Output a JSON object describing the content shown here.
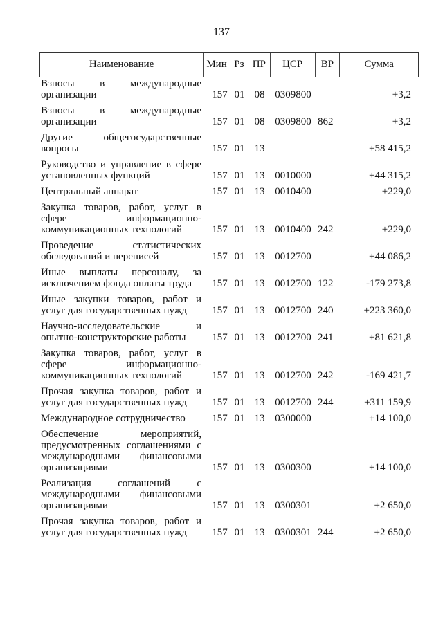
{
  "page_number": "137",
  "table": {
    "headers": [
      "Наименование",
      "Мин",
      "Рз",
      "ПР",
      "ЦСР",
      "ВР",
      "Сумма"
    ],
    "rows": [
      {
        "name": "Взносы в международные организации",
        "min": "157",
        "rz": "01",
        "pr": "08",
        "csr": "0309800",
        "vr": "",
        "sum": "+3,2"
      },
      {
        "name": "Взносы в международные организации",
        "min": "157",
        "rz": "01",
        "pr": "08",
        "csr": "0309800",
        "vr": "862",
        "sum": "+3,2"
      },
      {
        "name": "Другие общегосударственные вопросы",
        "min": "157",
        "rz": "01",
        "pr": "13",
        "csr": "",
        "vr": "",
        "sum": "+58 415,2"
      },
      {
        "name": "Руководство и управление в сфере установленных функций",
        "min": "157",
        "rz": "01",
        "pr": "13",
        "csr": "0010000",
        "vr": "",
        "sum": "+44 315,2"
      },
      {
        "name": "Центральный аппарат",
        "min": "157",
        "rz": "01",
        "pr": "13",
        "csr": "0010400",
        "vr": "",
        "sum": "+229,0"
      },
      {
        "name": "Закупка товаров, работ, услуг в сфере информационно-коммуникационных технологий",
        "min": "157",
        "rz": "01",
        "pr": "13",
        "csr": "0010400",
        "vr": "242",
        "sum": "+229,0"
      },
      {
        "name": "Проведение статистических обследований и переписей",
        "min": "157",
        "rz": "01",
        "pr": "13",
        "csr": "0012700",
        "vr": "",
        "sum": "+44 086,2"
      },
      {
        "name": "Иные выплаты персоналу, за исключением фонда оплаты труда",
        "min": "157",
        "rz": "01",
        "pr": "13",
        "csr": "0012700",
        "vr": "122",
        "sum": "-179 273,8"
      },
      {
        "name": "Иные закупки товаров, работ и услуг для государственных нужд",
        "min": "157",
        "rz": "01",
        "pr": "13",
        "csr": "0012700",
        "vr": "240",
        "sum": "+223 360,0"
      },
      {
        "name": "Научно-исследовательские и опытно-конструкторские работы",
        "min": "157",
        "rz": "01",
        "pr": "13",
        "csr": "0012700",
        "vr": "241",
        "sum": "+81 621,8"
      },
      {
        "name": "Закупка товаров, работ, услуг в сфере информационно-коммуникационных технологий",
        "min": "157",
        "rz": "01",
        "pr": "13",
        "csr": "0012700",
        "vr": "242",
        "sum": "-169 421,7"
      },
      {
        "name": "Прочая закупка товаров, работ и услуг для государственных нужд",
        "min": "157",
        "rz": "01",
        "pr": "13",
        "csr": "0012700",
        "vr": "244",
        "sum": "+311 159,9"
      },
      {
        "name": "Международное сотрудничество",
        "min": "157",
        "rz": "01",
        "pr": "13",
        "csr": "0300000",
        "vr": "",
        "sum": "+14 100,0"
      },
      {
        "name": "Обеспечение мероприятий, предусмотренных соглашениями с международными финансовыми организациями",
        "min": "157",
        "rz": "01",
        "pr": "13",
        "csr": "0300300",
        "vr": "",
        "sum": "+14 100,0"
      },
      {
        "name": "Реализация соглашений с международными финансовыми организациями",
        "min": "157",
        "rz": "01",
        "pr": "13",
        "csr": "0300301",
        "vr": "",
        "sum": "+2 650,0"
      },
      {
        "name": "Прочая закупка товаров, работ и услуг для государственных нужд",
        "min": "157",
        "rz": "01",
        "pr": "13",
        "csr": "0300301",
        "vr": "244",
        "sum": "+2 650,0"
      }
    ]
  }
}
